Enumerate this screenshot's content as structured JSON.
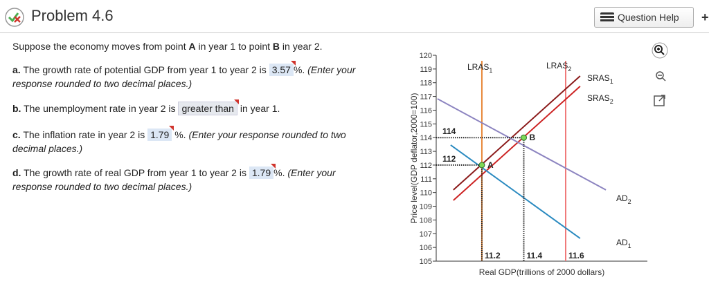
{
  "header": {
    "title": "Problem 4.6",
    "help": "Question Help"
  },
  "intro": [
    "Suppose the economy moves from point ",
    "A",
    " in year 1 to point ",
    "B",
    " in year 2."
  ],
  "parts": [
    {
      "label": "a.",
      "before": "The growth rate of potential GDP from year 1 to year 2 is",
      "answer": "3.57",
      "after": "%.",
      "note": "(Enter your response rounded to two decimal places.)"
    },
    {
      "label": "b.",
      "before": "The unemployment rate in year 2 is",
      "answer": "greater than",
      "after": "in year 1."
    },
    {
      "label": "c.",
      "before": "The inflation rate in year 2 is",
      "answer": "1.79",
      "after": "%.",
      "note": "(Enter your response rounded to two decimal places.)"
    },
    {
      "label": "d.",
      "before": "The growth rate of real GDP from year 1 to year 2 is",
      "answer": "1.79",
      "after": "%.",
      "note": "(Enter your response rounded to two decimal places.)"
    }
  ],
  "graph": {
    "ylabel": "Price level(GDP deflator,2000=100)",
    "xlabel": "Real GDP(trillions of 2000 dollars)",
    "xlim": [
      10.982,
      11.99
    ],
    "ylim": [
      105,
      120
    ],
    "xticks": [
      11.2,
      11.4,
      11.6
    ],
    "yticks": [
      105,
      106,
      107,
      108,
      109,
      110,
      111,
      112,
      113,
      114,
      115,
      116,
      117,
      118,
      119,
      120
    ],
    "lines": [
      {
        "name": "LRAS",
        "sub": "1",
        "color": "#e8883a",
        "x": [
          11.2,
          11.2
        ],
        "y": [
          105,
          119.6
        ]
      },
      {
        "name": "LRAS",
        "sub": "2",
        "color": "#f07a7a",
        "x": [
          11.6,
          11.6
        ],
        "y": [
          105,
          119.6
        ]
      },
      {
        "name": "SRAS",
        "sub": "1",
        "color": "#8b1a1a",
        "x": [
          11.064,
          11.669
        ],
        "y": [
          110.19,
          118.49
        ]
      },
      {
        "name": "SRAS",
        "sub": "2",
        "color": "#cc2222",
        "x": [
          11.064,
          11.669
        ],
        "y": [
          109.43,
          117.74
        ]
      },
      {
        "name": "AD",
        "sub": "2",
        "color": "#8c84c0",
        "x": [
          10.988,
          11.792
        ],
        "y": [
          116.83,
          110.19
        ]
      },
      {
        "name": "AD",
        "sub": "1",
        "color": "#2a8ac0",
        "x": [
          11.051,
          11.669
        ],
        "y": [
          113.46,
          106.66
        ]
      }
    ],
    "points": [
      {
        "label": "A",
        "x": 11.2,
        "y": 112
      },
      {
        "label": "B",
        "x": 11.4,
        "y": 114
      }
    ]
  }
}
